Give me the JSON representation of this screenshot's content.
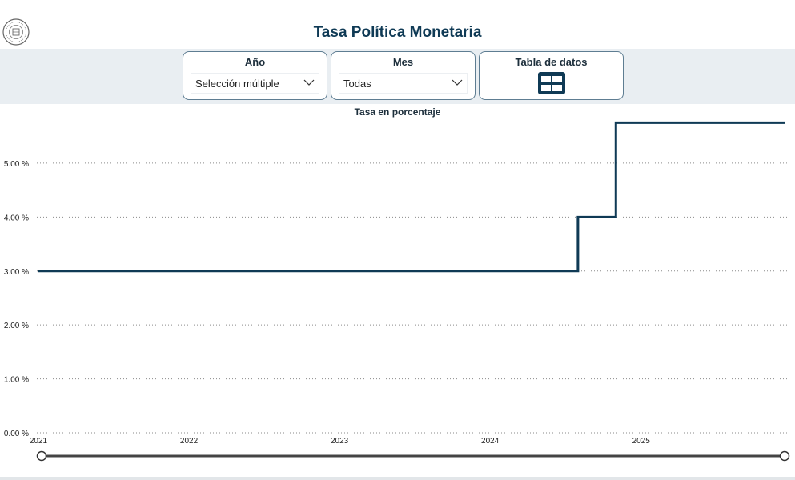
{
  "header": {
    "title": "Tasa Política Monetaria",
    "logo_icon": "central-bank-seal-icon"
  },
  "filters": {
    "year": {
      "label": "Año",
      "value": "Selección múltiple",
      "icon": "chevron-down-icon"
    },
    "month": {
      "label": "Mes",
      "value": "Todas",
      "icon": "chevron-down-icon"
    },
    "data_table": {
      "label": "Tabla de datos",
      "icon": "table-icon"
    }
  },
  "colors": {
    "accent": "#0f3a55",
    "filter_band": "#e9eef2",
    "card_border": "#5e7d92"
  },
  "chart_data": {
    "type": "line",
    "step": true,
    "title": "Tasa en porcentaje",
    "xlabel": "",
    "ylabel": "",
    "x_ticks": [
      "2021",
      "2022",
      "2023",
      "2024",
      "2025"
    ],
    "y_ticks": [
      "0.00 %",
      "1.00 %",
      "2.00 %",
      "3.00 %",
      "4.00 %",
      "5.00 %"
    ],
    "xlim": [
      "2021-01-01",
      "2025-12-15"
    ],
    "ylim": [
      0,
      5.8
    ],
    "grid": "horizontal dotted",
    "legend": "none",
    "series": [
      {
        "color": "#0f3a55",
        "points": [
          {
            "x": "2021-01-01",
            "y": 3.0
          },
          {
            "x": "2024-08-01",
            "y": 4.0
          },
          {
            "x": "2024-11-01",
            "y": 5.75
          },
          {
            "x": "2025-12-15",
            "y": 5.75
          }
        ]
      }
    ],
    "range_slider": {
      "start": "2021-01-01",
      "end": "2025-12-15"
    }
  }
}
